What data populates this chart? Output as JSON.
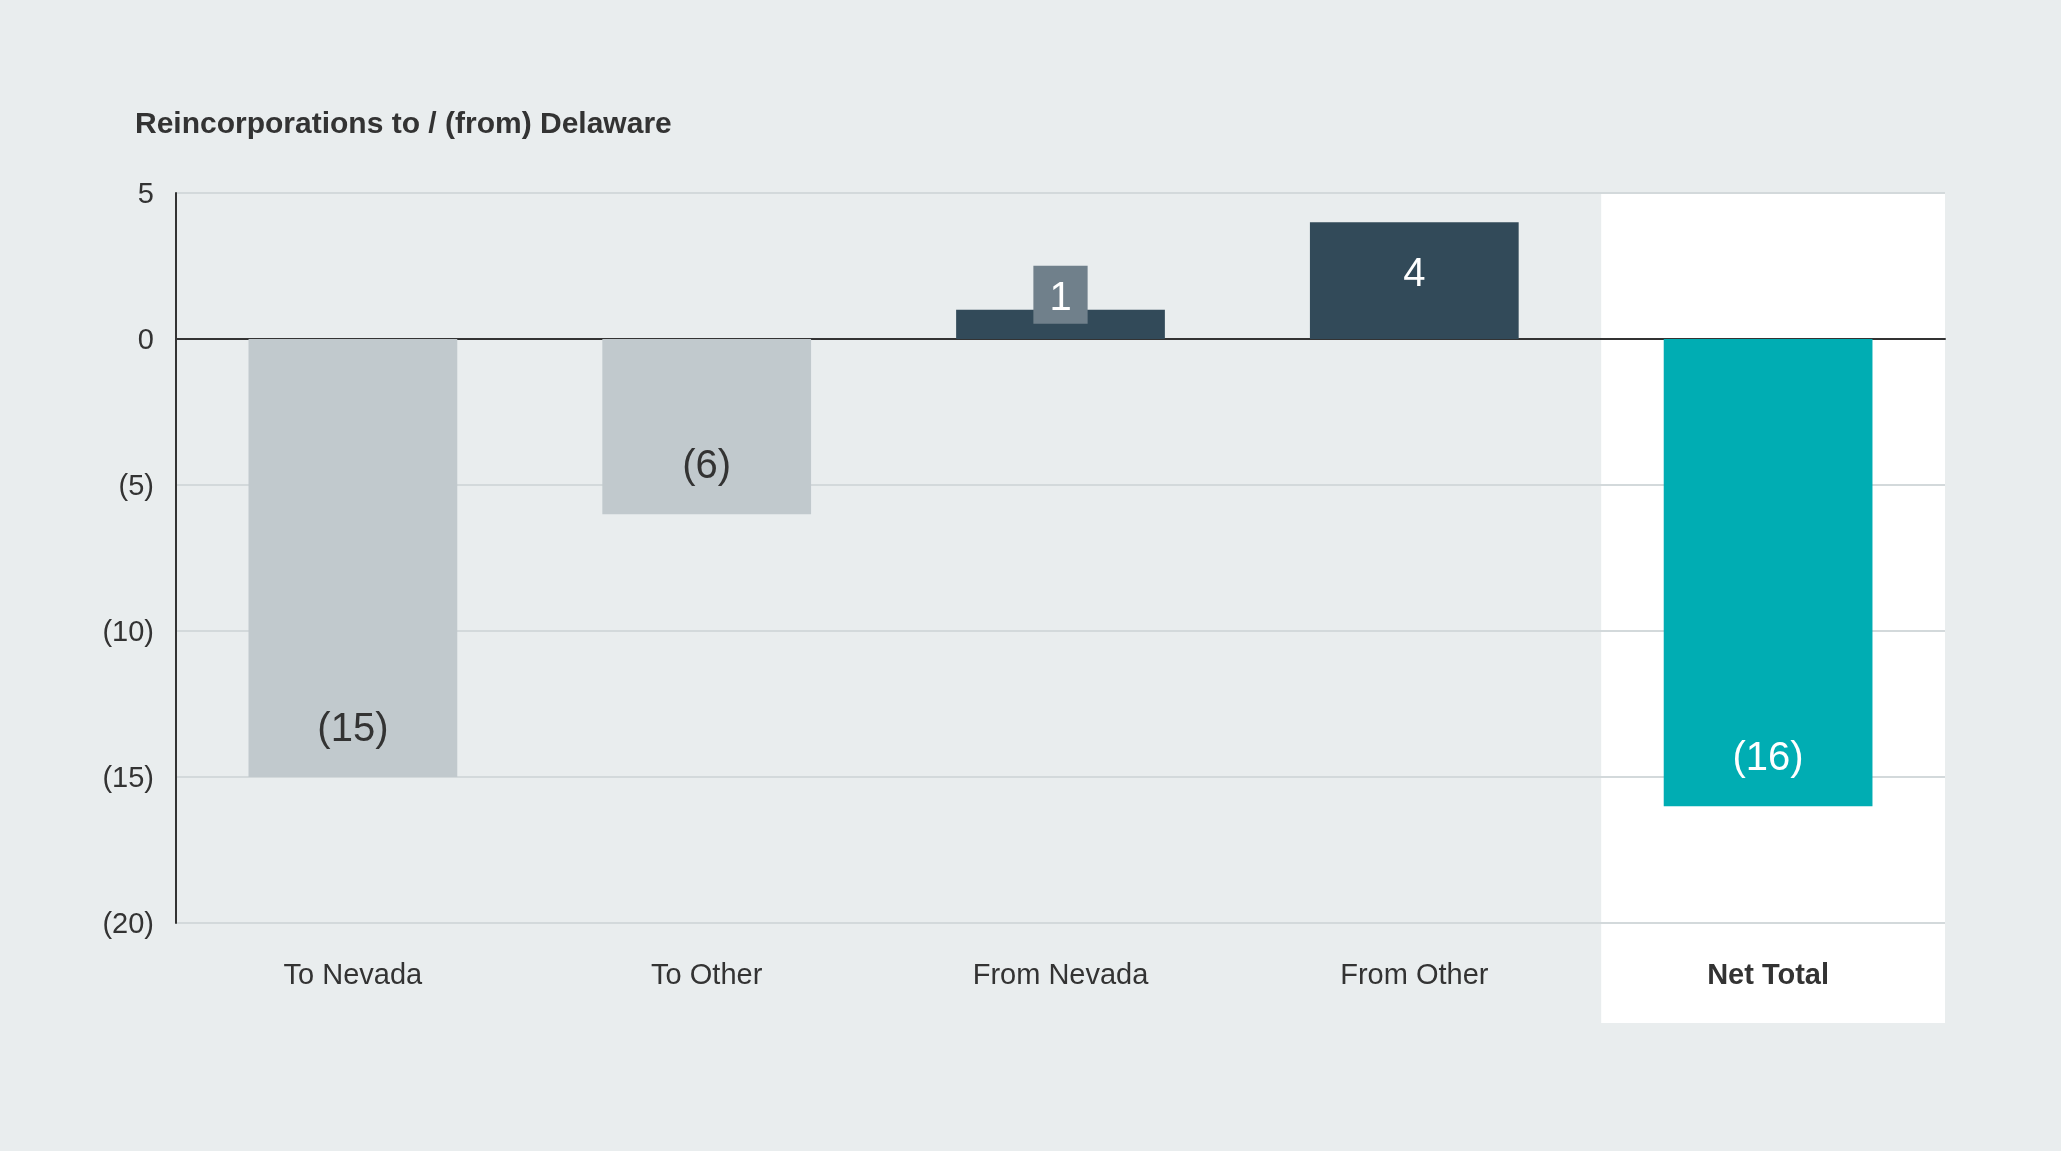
{
  "chart_data": {
    "type": "bar",
    "title": "Reincorporations to / (from) Delaware",
    "categories": [
      "To Nevada",
      "To Other",
      "From Nevada",
      "From Other",
      "Net Total"
    ],
    "values": [
      -15,
      -6,
      1,
      4,
      -16
    ],
    "colors": [
      "#c1c9cd",
      "#c1c9cd",
      "#324a59",
      "#324a59",
      "#00adb3"
    ],
    "value_labels": [
      "(15)",
      "(6)",
      "1",
      "4",
      "(16)"
    ],
    "ylim": [
      -20,
      5
    ],
    "yticks": [
      5,
      0,
      {
        "value": -5,
        "label": "(5)"
      },
      {
        "value": -10,
        "label": "(10)"
      },
      {
        "value": -15,
        "label": "(15)"
      },
      {
        "value": -20,
        "label": "(20)"
      }
    ],
    "grid": "y",
    "bands": [
      {
        "axis": "x",
        "from": "Net Total",
        "to": "Net Total",
        "color": "#ffffff"
      }
    ]
  }
}
